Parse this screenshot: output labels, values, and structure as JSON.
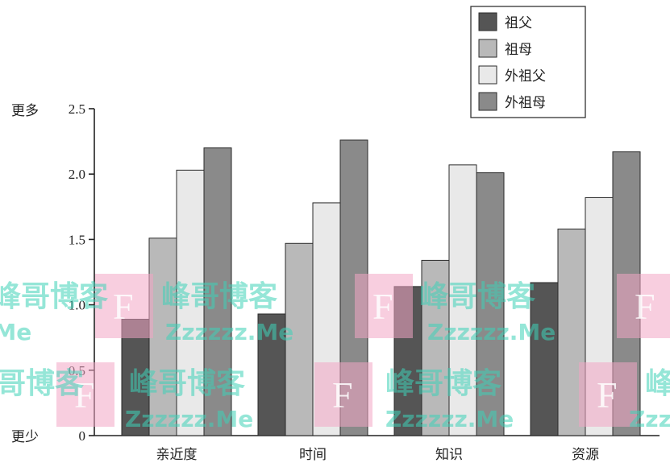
{
  "chart_data": {
    "type": "bar",
    "categories": [
      "亲近度",
      "时间",
      "知识",
      "资源"
    ],
    "series": [
      {
        "name": "祖父",
        "values": [
          0.89,
          0.93,
          1.14,
          1.17
        ],
        "color": "#555555"
      },
      {
        "name": "祖母",
        "values": [
          1.51,
          1.47,
          1.34,
          1.58
        ],
        "color": "#b9b9b9"
      },
      {
        "name": "外祖父",
        "values": [
          2.03,
          1.78,
          2.07,
          1.82
        ],
        "color": "#e9e9e9"
      },
      {
        "name": "外祖母",
        "values": [
          2.2,
          2.26,
          2.01,
          2.17
        ],
        "color": "#8a8a8a"
      }
    ],
    "ylim": [
      0,
      2.5
    ],
    "yticks": [
      "0",
      "0.5",
      "1.0",
      "1.5",
      "2.0",
      "2.5"
    ],
    "ytick_values": [
      0,
      0.5,
      1.0,
      1.5,
      2.0,
      2.5
    ],
    "y_top_label": "更多",
    "y_bottom_label": "更少",
    "legend_position": "top-right",
    "title": "",
    "xlabel": "",
    "ylabel": ""
  },
  "watermark": {
    "blog_text": "峰哥博客",
    "site_text": "Zzzzzz.Me",
    "letter": "F"
  }
}
